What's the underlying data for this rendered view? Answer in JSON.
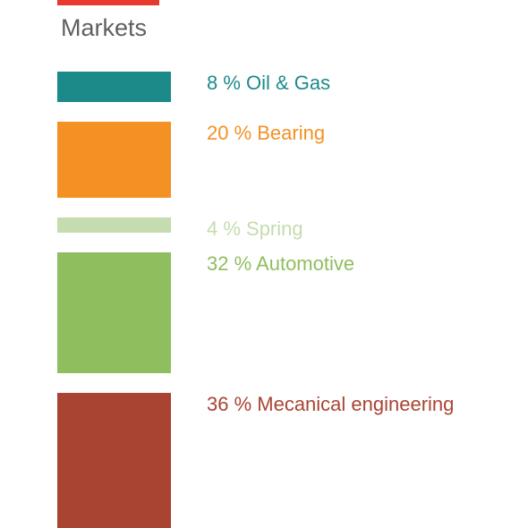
{
  "page": {
    "title": "Markets",
    "accent_color": "#e8372d",
    "title_color": "#5f5f5f"
  },
  "chart_data": {
    "type": "bar",
    "orientation": "stacked-vertical-proportional",
    "title": "Markets",
    "unit": "%",
    "series": [
      {
        "name": "Oil & Gas",
        "value": 8,
        "label": "8 %  Oil & Gas",
        "color": "#1d8a8a"
      },
      {
        "name": "Bearing",
        "value": 20,
        "label": "20 %  Bearing",
        "color": "#f39125"
      },
      {
        "name": "Spring",
        "value": 4,
        "label": "4 %  Spring",
        "color": "#c4dcb0"
      },
      {
        "name": "Automotive",
        "value": 32,
        "label": "32 % Automotive",
        "color": "#8fbe5f"
      },
      {
        "name": "Mecanical engineering",
        "value": 36,
        "label": "36 %  Mecanical engineering",
        "color": "#a94433"
      }
    ]
  }
}
